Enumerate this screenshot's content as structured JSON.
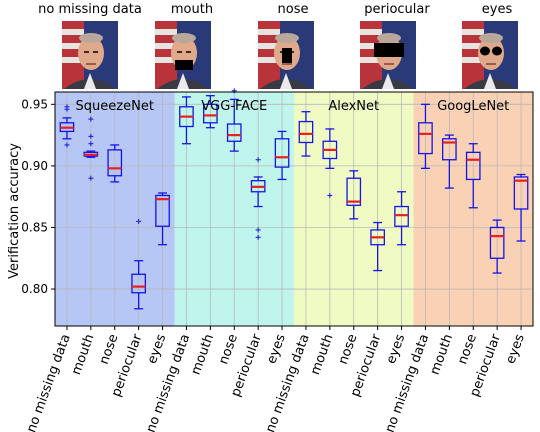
{
  "header": {
    "occlusions": [
      "no missing data",
      "mouth",
      "nose",
      "periocular",
      "eyes"
    ]
  },
  "colors": {
    "panel_bg": [
      "#b6c6f5",
      "#bff5ec",
      "#f0fbc4",
      "#f9d2b6"
    ],
    "box": "#1414e6",
    "median": "#e62020",
    "grid": "#b8b8b8"
  },
  "chart_data": {
    "type": "box",
    "ylabel": "Verification accuracy",
    "ylim": [
      0.77,
      0.96
    ],
    "yticks": [
      0.8,
      0.85,
      0.9,
      0.95
    ],
    "ytick_labels": [
      "0.80",
      "0.85",
      "0.90",
      "0.95"
    ],
    "grid": true,
    "categories": [
      "no missing data",
      "mouth",
      "nose",
      "periocular",
      "eyes"
    ],
    "panels": [
      {
        "name": "SqueezeNet",
        "boxes": [
          {
            "category": "no missing data",
            "whislo": 0.922,
            "q1": 0.928,
            "med": 0.931,
            "q3": 0.935,
            "whishi": 0.939,
            "fliers": [
              0.948,
              0.946,
              0.917
            ]
          },
          {
            "category": "mouth",
            "whislo": 0.907,
            "q1": 0.908,
            "med": 0.909,
            "q3": 0.911,
            "whishi": 0.912,
            "fliers": [
              0.938,
              0.924,
              0.918,
              0.89
            ]
          },
          {
            "category": "nose",
            "whislo": 0.887,
            "q1": 0.892,
            "med": 0.898,
            "q3": 0.913,
            "whishi": 0.917,
            "fliers": []
          },
          {
            "category": "periocular",
            "whislo": 0.784,
            "q1": 0.797,
            "med": 0.802,
            "q3": 0.812,
            "whishi": 0.823,
            "fliers": [
              0.855
            ]
          },
          {
            "category": "eyes",
            "whislo": 0.836,
            "q1": 0.851,
            "med": 0.873,
            "q3": 0.876,
            "whishi": 0.878,
            "fliers": []
          }
        ]
      },
      {
        "name": "VGG-FACE",
        "boxes": [
          {
            "category": "no missing data",
            "whislo": 0.918,
            "q1": 0.932,
            "med": 0.94,
            "q3": 0.948,
            "whishi": 0.956,
            "fliers": []
          },
          {
            "category": "mouth",
            "whislo": 0.931,
            "q1": 0.935,
            "med": 0.941,
            "q3": 0.95,
            "whishi": 0.957,
            "fliers": []
          },
          {
            "category": "nose",
            "whislo": 0.912,
            "q1": 0.92,
            "med": 0.925,
            "q3": 0.934,
            "whishi": 0.954,
            "fliers": [
              0.961
            ]
          },
          {
            "category": "periocular",
            "whislo": 0.867,
            "q1": 0.879,
            "med": 0.883,
            "q3": 0.888,
            "whishi": 0.891,
            "fliers": [
              0.905,
              0.848,
              0.842
            ]
          },
          {
            "category": "eyes",
            "whislo": 0.889,
            "q1": 0.899,
            "med": 0.907,
            "q3": 0.922,
            "whishi": 0.928,
            "fliers": []
          }
        ]
      },
      {
        "name": "AlexNet",
        "boxes": [
          {
            "category": "no missing data",
            "whislo": 0.908,
            "q1": 0.919,
            "med": 0.926,
            "q3": 0.936,
            "whishi": 0.944,
            "fliers": []
          },
          {
            "category": "mouth",
            "whislo": 0.898,
            "q1": 0.906,
            "med": 0.913,
            "q3": 0.92,
            "whishi": 0.93,
            "fliers": [
              0.876
            ]
          },
          {
            "category": "nose",
            "whislo": 0.857,
            "q1": 0.868,
            "med": 0.871,
            "q3": 0.89,
            "whishi": 0.896,
            "fliers": []
          },
          {
            "category": "periocular",
            "whislo": 0.815,
            "q1": 0.836,
            "med": 0.842,
            "q3": 0.848,
            "whishi": 0.854,
            "fliers": []
          },
          {
            "category": "eyes",
            "whislo": 0.836,
            "q1": 0.851,
            "med": 0.86,
            "q3": 0.867,
            "whishi": 0.879,
            "fliers": []
          }
        ]
      },
      {
        "name": "GoogLeNet",
        "boxes": [
          {
            "category": "no missing data",
            "whislo": 0.898,
            "q1": 0.91,
            "med": 0.926,
            "q3": 0.935,
            "whishi": 0.95,
            "fliers": []
          },
          {
            "category": "mouth",
            "whislo": 0.882,
            "q1": 0.905,
            "med": 0.919,
            "q3": 0.922,
            "whishi": 0.925,
            "fliers": []
          },
          {
            "category": "nose",
            "whislo": 0.866,
            "q1": 0.889,
            "med": 0.905,
            "q3": 0.911,
            "whishi": 0.918,
            "fliers": []
          },
          {
            "category": "periocular",
            "whislo": 0.813,
            "q1": 0.825,
            "med": 0.843,
            "q3": 0.85,
            "whishi": 0.856,
            "fliers": []
          },
          {
            "category": "eyes",
            "whislo": 0.839,
            "q1": 0.865,
            "med": 0.888,
            "q3": 0.891,
            "whishi": 0.893,
            "fliers": []
          }
        ]
      }
    ]
  }
}
